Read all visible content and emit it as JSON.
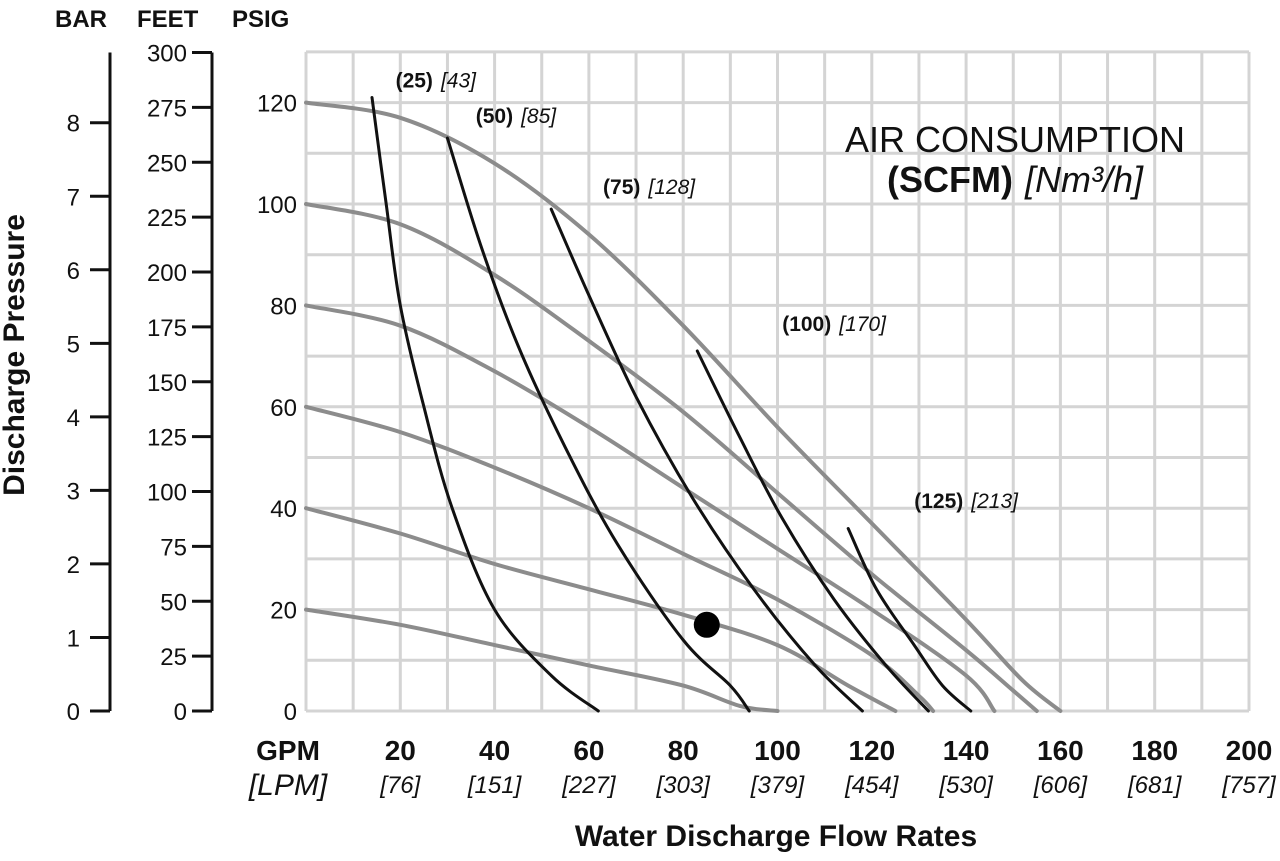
{
  "chart_data": {
    "type": "line",
    "xlabel": "Water Discharge Flow Rates",
    "ylabel": "Discharge Pressure",
    "x_unit_primary": "GPM",
    "x_unit_secondary": "[LPM]",
    "xlim": [
      0,
      200
    ],
    "ylim": [
      0,
      130
    ],
    "x_ticks": [
      {
        "gpm": "20",
        "lpm": "[76]"
      },
      {
        "gpm": "40",
        "lpm": "[151]"
      },
      {
        "gpm": "60",
        "lpm": "[227]"
      },
      {
        "gpm": "80",
        "lpm": "[303]"
      },
      {
        "gpm": "100",
        "lpm": "[379]"
      },
      {
        "gpm": "120",
        "lpm": "[454]"
      },
      {
        "gpm": "140",
        "lpm": "[530]"
      },
      {
        "gpm": "160",
        "lpm": "[606]"
      },
      {
        "gpm": "180",
        "lpm": "[681]"
      },
      {
        "gpm": "200",
        "lpm": "[757]"
      }
    ],
    "x_ticks_values": [
      20,
      40,
      60,
      80,
      100,
      120,
      140,
      160,
      180,
      200
    ],
    "axes": {
      "psig": {
        "header": "PSIG",
        "ticks": [
          0,
          20,
          40,
          60,
          80,
          100,
          120
        ]
      },
      "feet": {
        "header": "FEET",
        "ticks": [
          0,
          25,
          50,
          75,
          100,
          125,
          150,
          175,
          200,
          225,
          250,
          275,
          300
        ]
      },
      "bar": {
        "header": "BAR",
        "ticks": [
          0,
          1,
          2,
          3,
          4,
          5,
          6,
          7,
          8
        ]
      }
    },
    "legend": {
      "line1": "AIR CONSUMPTION",
      "line2_bold": "(SCFM)",
      "line2_italic": "[Nm³/h]"
    },
    "pressure_curves": [
      {
        "points": [
          [
            0,
            120
          ],
          [
            20,
            117
          ],
          [
            40,
            108
          ],
          [
            60,
            94
          ],
          [
            80,
            76
          ],
          [
            100,
            56
          ],
          [
            120,
            37
          ],
          [
            140,
            18
          ],
          [
            152,
            6
          ],
          [
            160,
            0
          ]
        ]
      },
      {
        "points": [
          [
            0,
            100
          ],
          [
            20,
            96
          ],
          [
            40,
            86
          ],
          [
            60,
            73
          ],
          [
            80,
            59
          ],
          [
            100,
            43
          ],
          [
            120,
            27
          ],
          [
            140,
            12
          ],
          [
            150,
            4
          ],
          [
            155,
            0
          ]
        ]
      },
      {
        "points": [
          [
            0,
            80
          ],
          [
            20,
            76
          ],
          [
            40,
            67
          ],
          [
            60,
            56
          ],
          [
            80,
            44
          ],
          [
            100,
            32
          ],
          [
            120,
            20
          ],
          [
            140,
            7
          ],
          [
            146,
            0
          ]
        ]
      },
      {
        "points": [
          [
            0,
            60
          ],
          [
            20,
            55
          ],
          [
            40,
            48
          ],
          [
            60,
            40
          ],
          [
            80,
            31
          ],
          [
            100,
            22
          ],
          [
            120,
            11
          ],
          [
            130,
            3
          ],
          [
            133,
            0
          ]
        ]
      },
      {
        "points": [
          [
            0,
            40
          ],
          [
            20,
            35
          ],
          [
            40,
            29
          ],
          [
            60,
            24
          ],
          [
            80,
            19
          ],
          [
            100,
            13
          ],
          [
            115,
            5
          ],
          [
            125,
            0
          ]
        ]
      },
      {
        "points": [
          [
            0,
            20
          ],
          [
            20,
            17
          ],
          [
            40,
            13
          ],
          [
            60,
            9
          ],
          [
            80,
            5
          ],
          [
            92,
            1
          ],
          [
            100,
            0
          ]
        ]
      }
    ],
    "air_curves": [
      {
        "label_bold": "(25)",
        "label_italic": "[43]",
        "label_at": [
          19,
          123
        ],
        "points": [
          [
            14,
            121
          ],
          [
            17,
            100
          ],
          [
            20,
            80
          ],
          [
            25,
            60
          ],
          [
            31,
            40
          ],
          [
            40,
            20
          ],
          [
            52,
            7
          ],
          [
            62,
            0
          ]
        ]
      },
      {
        "label_bold": "(50)",
        "label_italic": "[85]",
        "label_at": [
          36,
          116
        ],
        "points": [
          [
            30,
            113
          ],
          [
            37,
            92
          ],
          [
            45,
            72
          ],
          [
            55,
            52
          ],
          [
            66,
            33
          ],
          [
            80,
            14
          ],
          [
            90,
            5
          ],
          [
            94,
            0
          ]
        ]
      },
      {
        "label_bold": "(75)",
        "label_italic": "[128]",
        "label_at": [
          63,
          102
        ],
        "points": [
          [
            52,
            99
          ],
          [
            60,
            82
          ],
          [
            70,
            62
          ],
          [
            82,
            42
          ],
          [
            95,
            24
          ],
          [
            108,
            9
          ],
          [
            118,
            0
          ]
        ]
      },
      {
        "label_bold": "(100)",
        "label_italic": "[170]",
        "label_at": [
          101,
          75
        ],
        "points": [
          [
            83,
            71
          ],
          [
            92,
            54
          ],
          [
            101,
            38
          ],
          [
            112,
            22
          ],
          [
            123,
            9
          ],
          [
            132,
            0
          ]
        ]
      },
      {
        "label_bold": "(125)",
        "label_italic": "[213]",
        "label_at": [
          129,
          40
        ],
        "points": [
          [
            115,
            36
          ],
          [
            121,
            24
          ],
          [
            129,
            13
          ],
          [
            135,
            5
          ],
          [
            141,
            0
          ]
        ]
      }
    ],
    "marker": {
      "x": 85,
      "y": 17,
      "shape": "filled-circle"
    }
  }
}
